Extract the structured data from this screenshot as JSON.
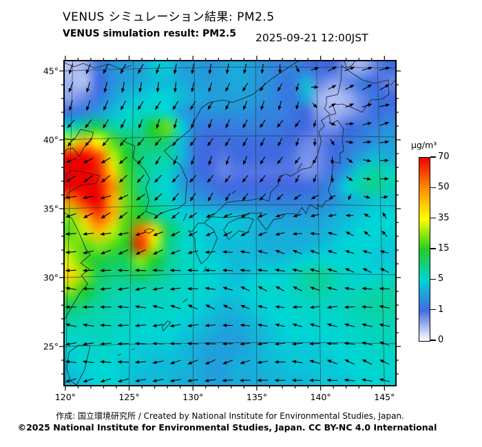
{
  "header": {
    "title_ja": "VENUS シミュレーション結果: PM2.5",
    "title_en": "VENUS simulation result: PM2.5",
    "timestamp": "2025-09-21 12:00JST"
  },
  "axes": {
    "x_tick_labels": [
      "120°",
      "125°",
      "130°",
      "135°",
      "140°",
      "145°"
    ],
    "y_tick_labels": [
      "45°",
      "40°",
      "35°",
      "30°",
      "25°"
    ]
  },
  "colorbar": {
    "unit": "μg/m³",
    "tick_labels": [
      "70",
      "50",
      "35",
      "15",
      "5",
      "1",
      "0"
    ]
  },
  "footer": {
    "credit_line": "作成: 国立環境研究所 / Created by National Institute for Environmental Studies, Japan.",
    "license_line": "©2025 National Institute for Environmental Studies, Japan. CC BY-NC 4.0 International"
  },
  "chart_data": {
    "type": "heatmap",
    "title": "VENUS simulation result: PM2.5",
    "title_ja": "VENUS シミュレーション結果: PM2.5",
    "datetime": "2025-09-21 12:00JST",
    "variable": "PM2.5 concentration",
    "unit": "μg/m³",
    "region": "East Asia (Japan, Korea, eastern China)",
    "overlays": [
      "coastlines",
      "wind vectors",
      "5-degree graticule"
    ],
    "x_axis": {
      "ticks": [
        120,
        125,
        130,
        135,
        140,
        145
      ],
      "unit": "degrees E",
      "range": [
        119.9,
        145.9
      ],
      "minor_step": 1
    },
    "y_axis": {
      "ticks": [
        45,
        40,
        35,
        30,
        25
      ],
      "unit": "degrees N",
      "range": [
        22.15,
        45.75
      ],
      "minor_step": 1
    },
    "color_scale": {
      "values": [
        0,
        1,
        5,
        15,
        35,
        50,
        70
      ],
      "colors": [
        "#ffffff",
        "#4169e1",
        "#00d5d5",
        "#23cc23",
        "#ffff00",
        "#ff8c00",
        "#ee0000"
      ]
    },
    "pm25_grid": {
      "note": "approximate concentration field in ug/m3; 24 columns lon 119.9-145.9E, 22 rows lat 45.75-22.15N (north to south)",
      "lon_min": 119.9,
      "lon_max": 145.9,
      "lat_max": 45.75,
      "lat_min": 22.15,
      "values": [
        [
          0.4,
          0.5,
          1.5,
          2.5,
          3,
          3,
          4.5,
          4.5,
          3,
          3,
          2.5,
          3,
          3.5,
          3,
          2.5,
          2,
          2,
          1.5,
          1.2,
          1,
          0.6,
          0.5,
          0.8,
          1.2
        ],
        [
          0.5,
          0.4,
          1,
          2.5,
          3,
          3.5,
          4,
          4,
          3.5,
          3,
          3,
          3,
          3.5,
          3,
          2.5,
          2,
          1.5,
          4,
          0.8,
          0.6,
          0.8,
          1.5,
          1,
          0.8
        ],
        [
          0.6,
          0.8,
          1.5,
          3,
          4,
          4.5,
          5,
          5,
          4,
          3.5,
          3,
          3,
          3,
          3,
          2.5,
          2,
          1.5,
          3.5,
          0.5,
          0.4,
          0.5,
          0.8,
          1.5,
          1
        ],
        [
          1.5,
          2,
          3,
          4,
          5,
          6,
          6,
          5,
          3,
          2.5,
          2.5,
          2.5,
          2.5,
          2.5,
          2,
          2,
          1.5,
          1,
          0.6,
          0.5,
          0.6,
          0.8,
          1.2,
          1.5
        ],
        [
          6,
          10,
          12,
          8,
          7,
          8,
          15,
          22,
          5,
          2,
          1.5,
          1.5,
          1.8,
          1.8,
          1.8,
          1.5,
          1.2,
          1,
          0.8,
          0.7,
          1,
          1.5,
          2,
          2.5
        ],
        [
          30,
          45,
          35,
          20,
          12,
          10,
          12,
          10,
          4,
          1.5,
          1,
          1.2,
          1.2,
          1.2,
          1.2,
          1.2,
          1,
          0.8,
          0.8,
          1,
          1.5,
          2,
          2.5,
          3
        ],
        [
          68,
          70,
          60,
          30,
          15,
          10,
          8,
          8,
          4,
          1.5,
          1,
          0.9,
          1,
          1,
          1,
          1,
          0.9,
          0.7,
          0.8,
          1.2,
          2,
          3,
          4,
          3.5
        ],
        [
          72,
          70,
          65,
          40,
          18,
          10,
          7,
          6,
          3,
          1.5,
          1,
          0.8,
          0.9,
          0.9,
          0.9,
          0.9,
          0.9,
          0.7,
          0.8,
          1.5,
          3,
          6,
          8,
          6
        ],
        [
          70,
          72,
          68,
          50,
          20,
          10,
          6,
          5,
          3,
          2,
          1.5,
          1,
          1,
          1,
          1,
          1,
          1,
          1,
          1.5,
          2.5,
          5,
          8,
          9,
          7
        ],
        [
          50,
          65,
          70,
          45,
          22,
          12,
          8,
          6,
          4,
          3,
          2.5,
          2,
          2,
          2,
          2,
          1.8,
          1.8,
          1.8,
          2,
          2.5,
          3.5,
          4,
          4.5,
          4.5
        ],
        [
          25,
          45,
          60,
          45,
          20,
          15,
          10,
          7,
          5,
          4.5,
          4.5,
          4.5,
          4,
          4,
          3.5,
          3,
          3,
          3,
          3,
          3.5,
          4,
          4.5,
          5,
          5
        ],
        [
          20,
          30,
          45,
          30,
          18,
          55,
          40,
          12,
          7,
          5,
          4.5,
          4.5,
          4.5,
          4,
          3.5,
          3.5,
          3.5,
          3.5,
          3.5,
          4,
          4.5,
          5,
          5,
          5
        ],
        [
          25,
          20,
          25,
          20,
          15,
          65,
          30,
          10,
          6,
          5,
          4.5,
          4,
          4,
          4,
          3.5,
          3.5,
          3.5,
          3.5,
          4,
          4.5,
          5,
          5,
          5,
          4.5
        ],
        [
          30,
          18,
          14,
          12,
          12,
          25,
          15,
          9,
          6.5,
          5.5,
          5,
          4.5,
          4,
          4,
          4,
          4,
          4.5,
          5,
          5,
          5,
          5,
          5,
          4.5,
          4.5
        ],
        [
          40,
          25,
          12,
          10,
          10,
          12,
          10,
          8,
          6,
          5.5,
          5,
          4.5,
          4,
          4.5,
          5,
          5,
          6,
          8,
          9,
          7,
          5.5,
          5,
          5,
          5.5
        ],
        [
          25,
          15,
          10,
          8,
          7,
          7,
          7,
          6.5,
          6,
          5.5,
          5,
          4.5,
          4.5,
          5,
          5.5,
          5.5,
          6,
          7,
          8,
          6.5,
          6,
          6.5,
          7,
          7.5
        ],
        [
          12,
          10,
          8,
          7,
          6,
          6,
          6,
          6,
          5.5,
          5,
          4.5,
          4,
          4,
          4.5,
          5,
          5,
          5.5,
          6,
          6,
          6,
          6.5,
          7.5,
          8,
          8
        ],
        [
          8,
          7,
          7,
          6.5,
          6,
          5.5,
          5.5,
          5.5,
          5,
          4.5,
          4,
          3.5,
          3.5,
          4,
          4.5,
          5,
          5,
          5.5,
          5.5,
          5.5,
          6,
          6.5,
          7,
          7
        ],
        [
          6,
          6,
          6.5,
          6,
          5.5,
          5,
          5,
          5,
          4.5,
          4,
          3.5,
          3,
          3,
          3.5,
          4,
          4.5,
          5,
          5,
          5,
          5,
          5.5,
          6,
          6.5,
          6.5
        ],
        [
          5,
          5.5,
          6,
          5.5,
          5,
          4.5,
          4.5,
          4.5,
          4,
          3.5,
          3,
          3,
          3,
          3.5,
          4,
          4.5,
          4.5,
          4.5,
          4.5,
          5,
          5,
          5.5,
          6,
          6
        ],
        [
          4.5,
          5,
          5.5,
          5,
          4.5,
          4.5,
          4,
          4,
          4,
          3.5,
          3,
          3,
          3.5,
          3.5,
          4,
          4,
          4.5,
          4.5,
          4.5,
          4.5,
          5,
          5,
          5.5,
          5.5
        ],
        [
          4,
          4.5,
          5,
          5,
          4.5,
          4,
          4,
          4,
          3.5,
          3.5,
          3,
          3,
          3.5,
          3.5,
          3.5,
          4,
          4,
          4,
          4.5,
          4.5,
          4.5,
          5,
          5,
          5
        ]
      ]
    },
    "wind": {
      "note": "relative wind vector components (u eastward, v northward) on coarse grid, rows north to south",
      "lons": [
        120,
        122.9,
        125.8,
        128.7,
        131.6,
        134.4,
        137.3,
        140.2,
        143.1,
        146
      ],
      "lats": [
        45.75,
        42.8,
        39.9,
        36.9,
        33.9,
        31,
        28,
        25.1,
        22.15
      ],
      "u": [
        [
          -1,
          -1,
          -1,
          0,
          -0.5,
          -1,
          0,
          2,
          3,
          3
        ],
        [
          -1,
          -1,
          -1,
          -1,
          -1,
          -1,
          -1,
          0.5,
          2.5,
          3
        ],
        [
          -2,
          -2,
          -1.5,
          -1,
          -1,
          -1,
          -1,
          0,
          1.5,
          2
        ],
        [
          -3,
          -3,
          -2,
          -1.5,
          -1,
          -1,
          -1,
          -0.5,
          1,
          1.5
        ],
        [
          -3,
          -3,
          -2.5,
          -2,
          -2,
          -2,
          -2,
          -2,
          -1,
          -0.5
        ],
        [
          -3,
          -3,
          -3,
          -3,
          -3,
          -2.5,
          -2.5,
          -2.5,
          -2,
          -2
        ],
        [
          -3,
          -3.5,
          -3.5,
          -3,
          -2.5,
          -2,
          -2,
          -2.5,
          -3,
          -3
        ],
        [
          -3.5,
          -3.5,
          -3.5,
          -3.5,
          -3,
          -2.5,
          -3,
          -3,
          -3,
          -2.5
        ],
        [
          -3.5,
          -3.5,
          -3.5,
          -3.5,
          -3,
          -3,
          -3,
          -3,
          -3,
          -2.5
        ]
      ],
      "v": [
        [
          -3,
          -3,
          -3,
          -3,
          -3,
          -2.5,
          -2,
          1,
          1.5,
          1.5
        ],
        [
          -3,
          -3,
          -2.5,
          -2.5,
          -2,
          -2,
          -2,
          0.5,
          1,
          1
        ],
        [
          -2,
          -2,
          -2,
          -2,
          -2,
          -2,
          -1.5,
          -1,
          0,
          0.5
        ],
        [
          -1,
          -1.5,
          -2,
          -2,
          -2,
          -1.5,
          -1.5,
          -1,
          -0.5,
          0
        ],
        [
          -0.5,
          -1,
          -1.5,
          -1.5,
          -1,
          -1,
          -0.5,
          0,
          0.5,
          1
        ],
        [
          0,
          -0.5,
          -0.5,
          -0.5,
          0,
          0.5,
          1,
          1,
          1,
          0.5
        ],
        [
          0.5,
          0,
          0,
          0.5,
          1,
          1,
          0.5,
          0,
          0,
          0.5
        ],
        [
          0,
          0,
          0,
          -0.5,
          -0.5,
          -0.5,
          0,
          0.5,
          1,
          1
        ],
        [
          -0.5,
          -0.5,
          -0.5,
          -1,
          -1,
          -0.5,
          0,
          0.5,
          1,
          1
        ]
      ]
    }
  }
}
